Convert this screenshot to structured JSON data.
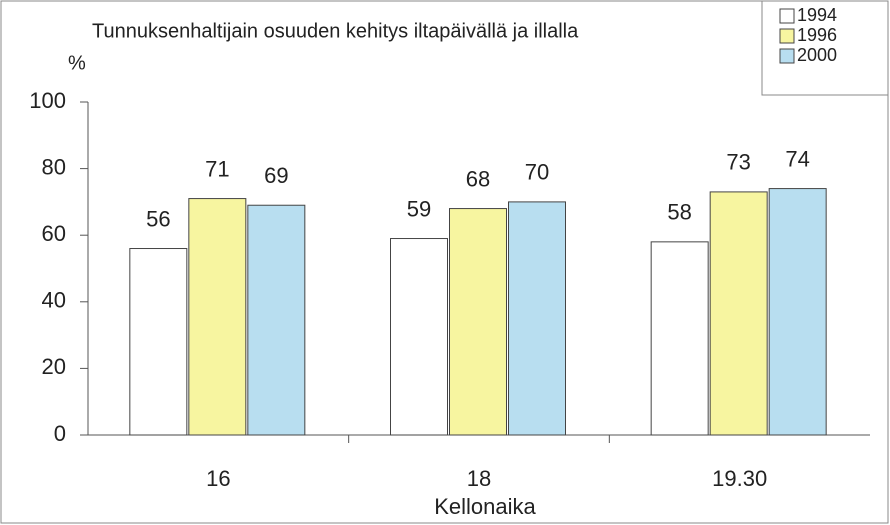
{
  "chart_data": {
    "type": "bar",
    "title": "Tunnuksenhaltijain osuuden kehitys iltapäivällä ja illalla",
    "y_label": "%",
    "x_label": "Kellonaika",
    "categories": [
      "16",
      "18",
      "19.30"
    ],
    "series": [
      {
        "name": "1994",
        "color": "#ffffff",
        "values": [
          56,
          59,
          58
        ]
      },
      {
        "name": "1996",
        "color": "#f7f5a0",
        "values": [
          71,
          68,
          73
        ]
      },
      {
        "name": "2000",
        "color": "#b8def0",
        "values": [
          69,
          70,
          74
        ]
      }
    ],
    "ylim": [
      0,
      100
    ],
    "yticks": [
      0,
      20,
      40,
      60,
      80,
      100
    ],
    "grid": false,
    "legend": "top-right"
  }
}
